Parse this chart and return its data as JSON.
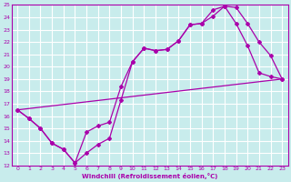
{
  "xlabel": "Windchill (Refroidissement éolien,°C)",
  "bg_color": "#c8ecec",
  "line_color": "#aa00aa",
  "grid_color": "#ffffff",
  "xlim": [
    -0.5,
    23.5
  ],
  "ylim": [
    12,
    25
  ],
  "xticks": [
    0,
    1,
    2,
    3,
    4,
    5,
    6,
    7,
    8,
    9,
    10,
    11,
    12,
    13,
    14,
    15,
    16,
    17,
    18,
    19,
    20,
    21,
    22,
    23
  ],
  "yticks": [
    12,
    13,
    14,
    15,
    16,
    17,
    18,
    19,
    20,
    21,
    22,
    23,
    24,
    25
  ],
  "line1_x": [
    0,
    1,
    2,
    3,
    4,
    5,
    6,
    7,
    8,
    9,
    10,
    11,
    12,
    13,
    14,
    15,
    16,
    17,
    18,
    19,
    20,
    21,
    22,
    23
  ],
  "line1_y": [
    16.5,
    15.8,
    15.0,
    13.8,
    13.3,
    12.2,
    13.0,
    13.7,
    14.2,
    17.3,
    20.4,
    21.5,
    21.3,
    21.4,
    22.1,
    23.4,
    23.5,
    24.6,
    24.9,
    24.8,
    23.5,
    22.0,
    20.9,
    19.0
  ],
  "line2_x": [
    0,
    1,
    2,
    3,
    4,
    5,
    6,
    7,
    8,
    9,
    10,
    11,
    12,
    13,
    14,
    15,
    16,
    17,
    18,
    19,
    20,
    21,
    22,
    23
  ],
  "line2_y": [
    16.5,
    15.8,
    15.0,
    13.8,
    13.3,
    12.2,
    14.7,
    15.2,
    15.5,
    18.4,
    20.4,
    21.5,
    21.3,
    21.4,
    22.1,
    23.4,
    23.5,
    24.1,
    24.9,
    23.5,
    21.7,
    19.5,
    19.2,
    19.0
  ],
  "line3_x": [
    0,
    23
  ],
  "line3_y": [
    16.5,
    19.0
  ]
}
